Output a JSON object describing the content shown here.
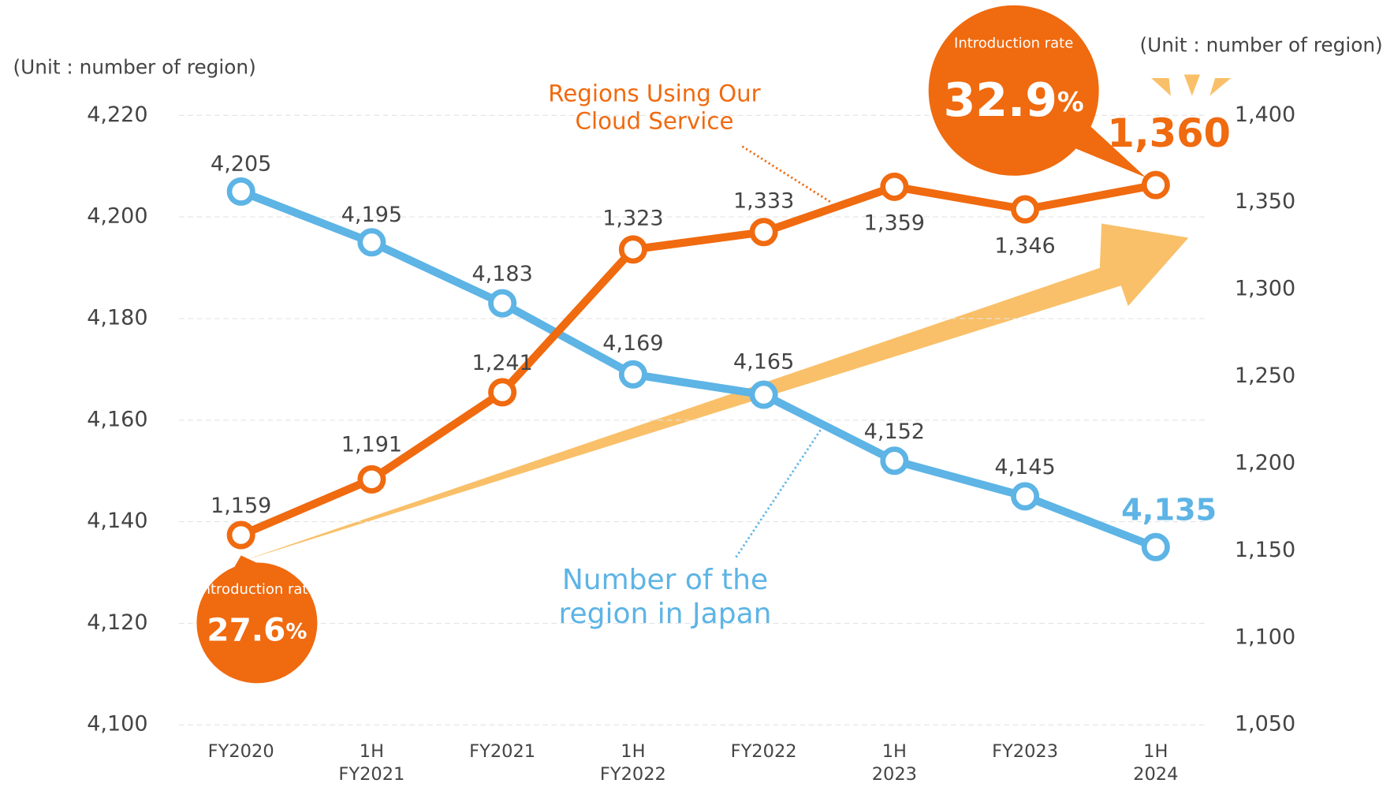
{
  "chart_data": {
    "type": "line",
    "categories": [
      "FY2020",
      "1H\nFY2021",
      "FY2021",
      "1H\nFY2022",
      "FY2022",
      "1H\n2023",
      "FY2023",
      "1H\n2024"
    ],
    "series": [
      {
        "name": "Number of the\nregion in Japan",
        "color": "#5db4e5",
        "axis": "y",
        "values": [
          4205,
          4195,
          4183,
          4169,
          4165,
          4152,
          4145,
          4135
        ],
        "value_labels": [
          "4,205",
          "4,195",
          "4,183",
          "4,169",
          "4,165",
          "4,152",
          "4,145",
          "4,135"
        ]
      },
      {
        "name": "Regions Using Our\nCloud Service",
        "color": "#f06a0f",
        "axis": "y2",
        "values": [
          1159,
          1191,
          1241,
          1323,
          1333,
          1359,
          1346,
          1360
        ],
        "value_labels": [
          "1,159",
          "1,191",
          "1,241",
          "1,323",
          "1,333",
          "1,359",
          "1,346",
          "1,360"
        ]
      }
    ],
    "ylim": [
      4100,
      4220
    ],
    "yticks": [
      {
        "value": 4100,
        "label": "4,100"
      },
      {
        "value": 4120,
        "label": "4,120"
      },
      {
        "value": 4140,
        "label": "4,140"
      },
      {
        "value": 4160,
        "label": "4,160"
      },
      {
        "value": 4180,
        "label": "4,180"
      },
      {
        "value": 4200,
        "label": "4,200"
      },
      {
        "value": 4220,
        "label": "4,220"
      }
    ],
    "y2lim": [
      1050,
      1400
    ],
    "y2ticks": [
      {
        "value": 1050,
        "label": "1,050"
      },
      {
        "value": 1100,
        "label": "1,100"
      },
      {
        "value": 1150,
        "label": "1,150"
      },
      {
        "value": 1200,
        "label": "1,200"
      },
      {
        "value": 1250,
        "label": "1,250"
      },
      {
        "value": 1300,
        "label": "1,300"
      },
      {
        "value": 1350,
        "label": "1,350"
      },
      {
        "value": 1400,
        "label": "1,400"
      }
    ],
    "ylabel": "(Unit : number of region)",
    "y2label": "(Unit : number of region)",
    "grid": true,
    "annotations": [
      {
        "caption": "Introduction rate",
        "rate": "27.6",
        "unit": "%"
      },
      {
        "caption": "Introduction rate",
        "rate": "32.9",
        "unit": "%"
      }
    ]
  }
}
